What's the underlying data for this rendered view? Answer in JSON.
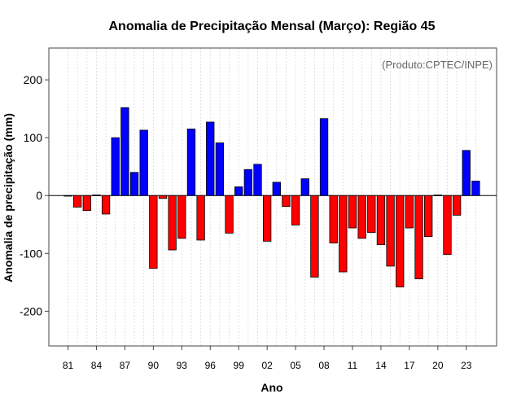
{
  "chart_data": {
    "type": "bar",
    "title": "Anomalia de Precipitação Mensal (Março): Região 45",
    "credit": "(Produto:CPTEC/INPE)",
    "xlabel": "Ano",
    "ylabel": "Anomalia de precipitação (mm)",
    "ylim": [
      -260,
      255
    ],
    "yticks": [
      -200,
      -100,
      0,
      100,
      200
    ],
    "categories": [
      "1981",
      "1982",
      "1983",
      "1984",
      "1985",
      "1986",
      "1987",
      "1988",
      "1989",
      "1990",
      "1991",
      "1992",
      "1993",
      "1994",
      "1995",
      "1996",
      "1997",
      "1998",
      "1999",
      "2000",
      "2001",
      "2002",
      "2003",
      "2004",
      "2005",
      "2006",
      "2007",
      "2008",
      "2009",
      "2010",
      "2011",
      "2012",
      "2013",
      "2014",
      "2015",
      "2016",
      "2017",
      "2018",
      "2019",
      "2020",
      "2021",
      "2022",
      "2023",
      "2024"
    ],
    "values": [
      -1,
      -20,
      -26,
      1,
      -32,
      100,
      152,
      40,
      113,
      -126,
      -5,
      -94,
      -74,
      115,
      -77,
      127,
      91,
      -65,
      15,
      45,
      54,
      -79,
      23,
      -19,
      -51,
      29,
      -141,
      133,
      -82,
      -132,
      -56,
      -74,
      -64,
      -85,
      -122,
      -158,
      -56,
      -144,
      -71,
      1,
      -102,
      -34,
      78,
      25
    ],
    "xtick_labels": [
      {
        "index": 0,
        "label": "81"
      },
      {
        "index": 3,
        "label": "84"
      },
      {
        "index": 6,
        "label": "87"
      },
      {
        "index": 9,
        "label": "90"
      },
      {
        "index": 12,
        "label": "93"
      },
      {
        "index": 15,
        "label": "96"
      },
      {
        "index": 18,
        "label": "99"
      },
      {
        "index": 21,
        "label": "02"
      },
      {
        "index": 24,
        "label": "05"
      },
      {
        "index": 27,
        "label": "08"
      },
      {
        "index": 30,
        "label": "11"
      },
      {
        "index": 33,
        "label": "14"
      },
      {
        "index": 36,
        "label": "17"
      },
      {
        "index": 39,
        "label": "20"
      },
      {
        "index": 42,
        "label": "23"
      }
    ],
    "colors": {
      "positive": "#0000ff",
      "negative": "#ff0000",
      "grid": "#d9d9d9",
      "zero_line": "#000000"
    }
  }
}
